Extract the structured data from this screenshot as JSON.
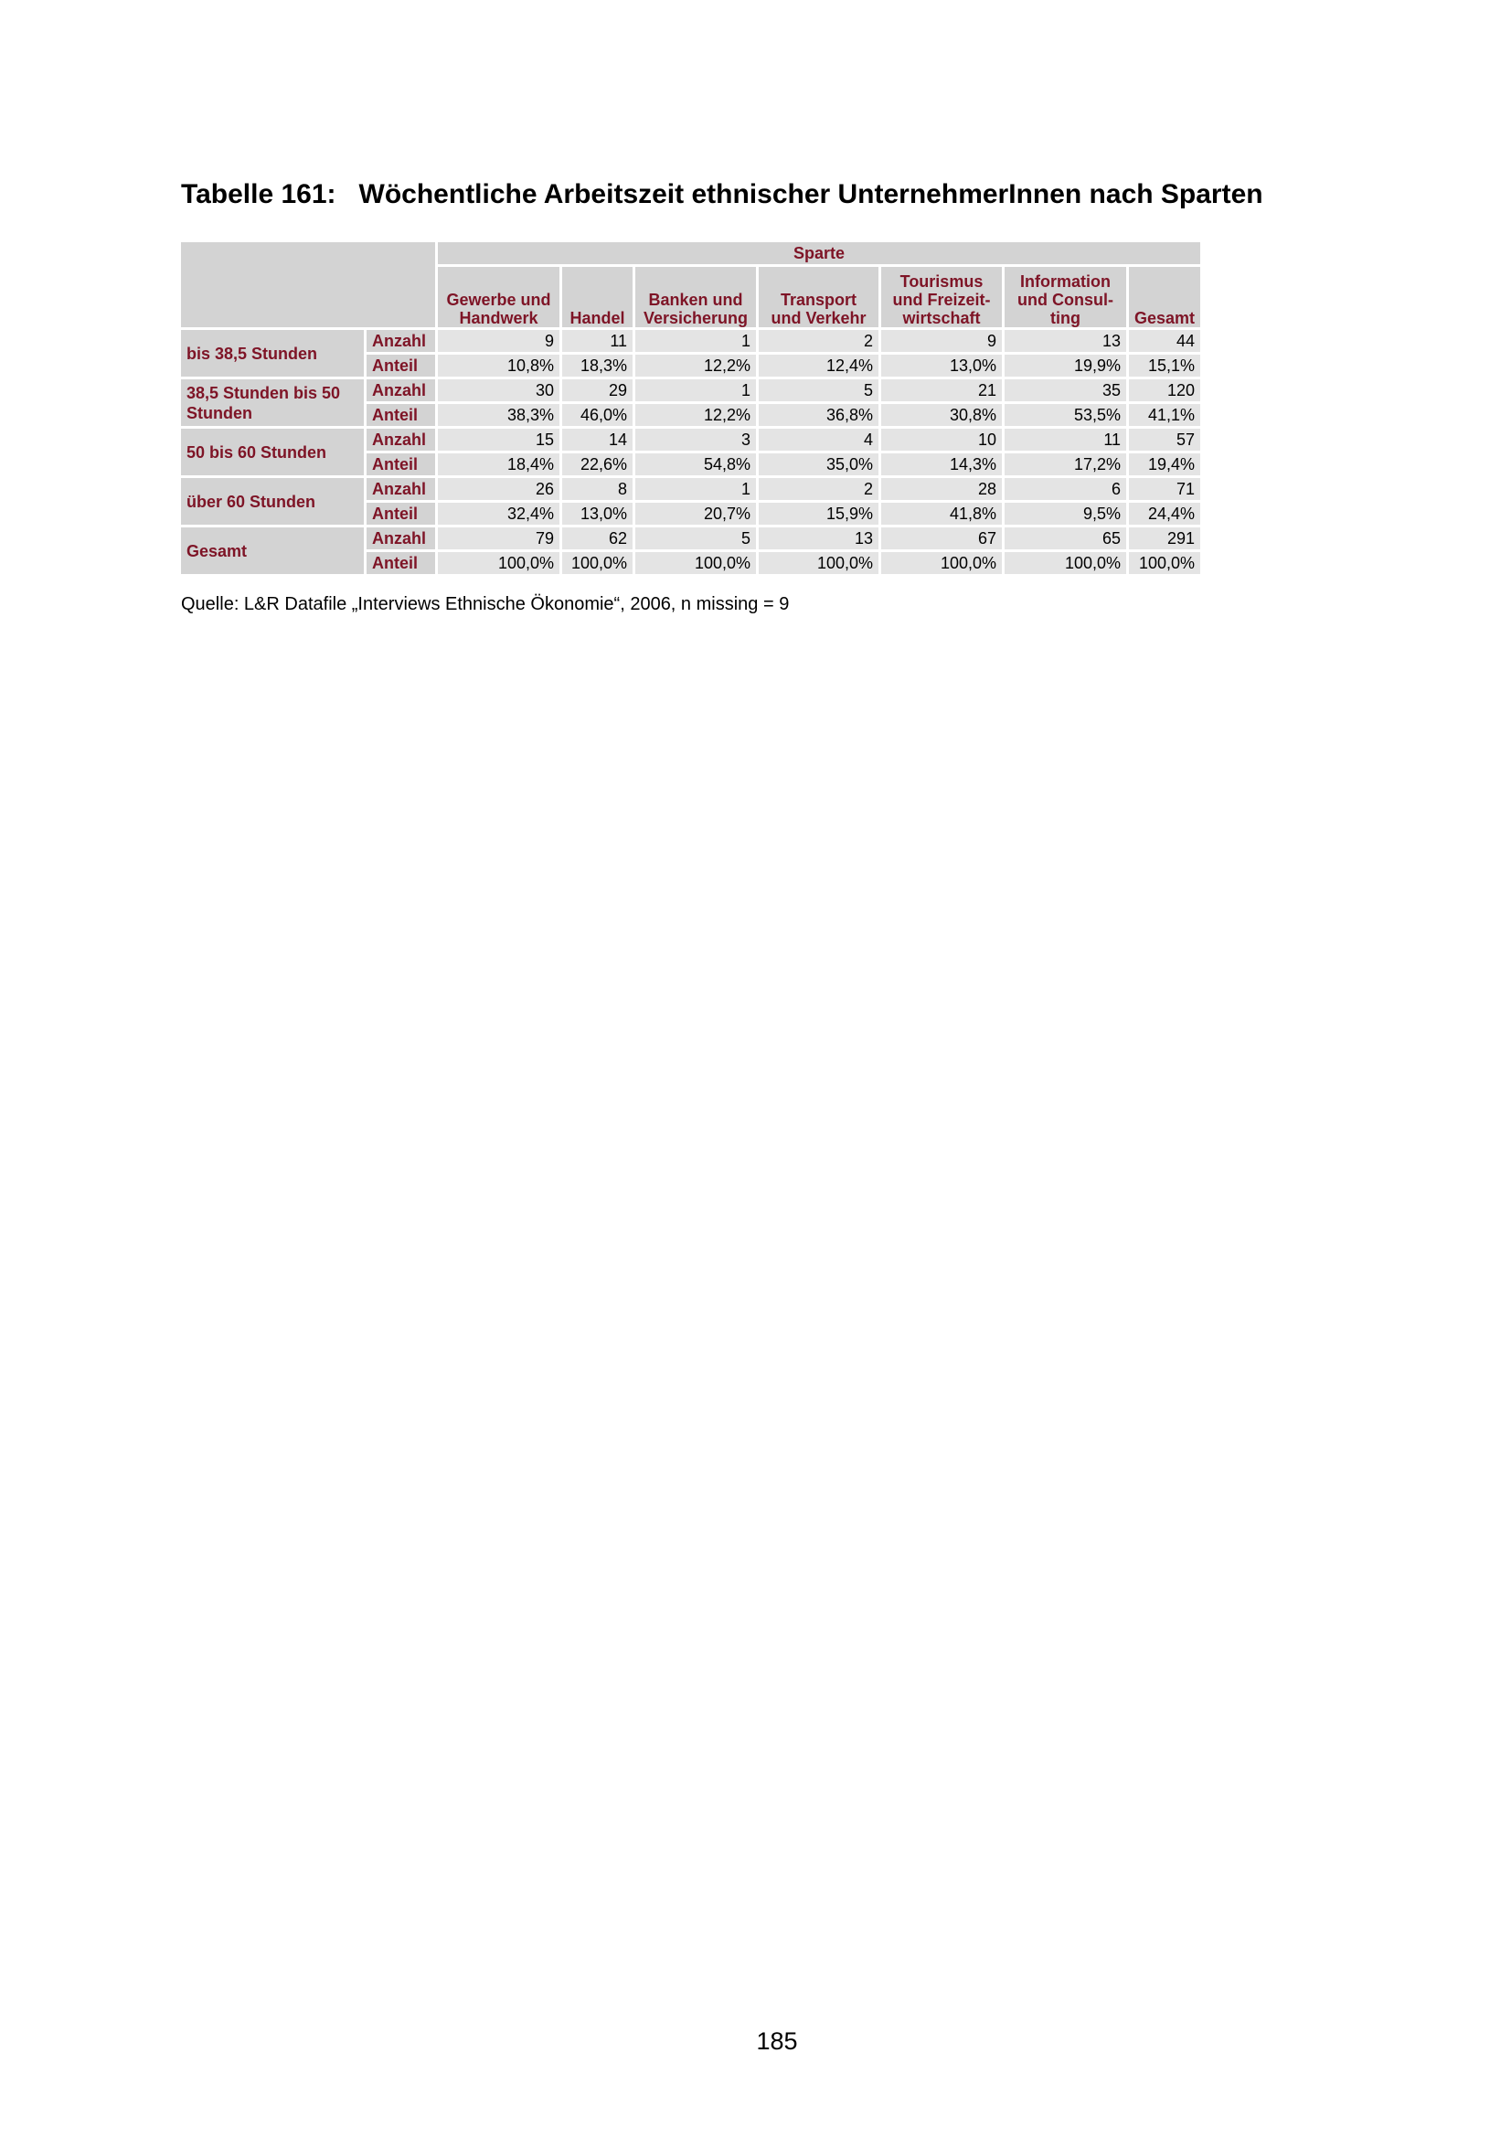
{
  "title": "Tabelle 161:   Wöchentliche Arbeitszeit ethnischer UnternehmerInnen nach Sparten",
  "table": {
    "group_header": "Sparte",
    "columns": [
      "Gewerbe und Handwerk",
      "Handel",
      "Banken und Versicherung",
      "Transport und Verkehr",
      "Tourismus und Freizeit-wirtschaft",
      "Information und Consul-ting",
      "Gesamt"
    ],
    "groups": [
      {
        "label": "bis 38,5 Stunden",
        "rows": [
          {
            "kind": "Anzahl",
            "values": [
              "9",
              "11",
              "1",
              "2",
              "9",
              "13",
              "44"
            ]
          },
          {
            "kind": "Anteil",
            "values": [
              "10,8%",
              "18,3%",
              "12,2%",
              "12,4%",
              "13,0%",
              "19,9%",
              "15,1%"
            ]
          }
        ]
      },
      {
        "label": "38,5 Stunden bis 50 Stunden",
        "rows": [
          {
            "kind": "Anzahl",
            "values": [
              "30",
              "29",
              "1",
              "5",
              "21",
              "35",
              "120"
            ]
          },
          {
            "kind": "Anteil",
            "values": [
              "38,3%",
              "46,0%",
              "12,2%",
              "36,8%",
              "30,8%",
              "53,5%",
              "41,1%"
            ]
          }
        ]
      },
      {
        "label": "50 bis 60 Stunden",
        "rows": [
          {
            "kind": "Anzahl",
            "values": [
              "15",
              "14",
              "3",
              "4",
              "10",
              "11",
              "57"
            ]
          },
          {
            "kind": "Anteil",
            "values": [
              "18,4%",
              "22,6%",
              "54,8%",
              "35,0%",
              "14,3%",
              "17,2%",
              "19,4%"
            ]
          }
        ]
      },
      {
        "label": "über 60 Stunden",
        "rows": [
          {
            "kind": "Anzahl",
            "values": [
              "26",
              "8",
              "1",
              "2",
              "28",
              "6",
              "71"
            ]
          },
          {
            "kind": "Anteil",
            "values": [
              "32,4%",
              "13,0%",
              "20,7%",
              "15,9%",
              "41,8%",
              "9,5%",
              "24,4%"
            ]
          }
        ]
      },
      {
        "label": "Gesamt",
        "rows": [
          {
            "kind": "Anzahl",
            "values": [
              "79",
              "62",
              "5",
              "13",
              "67",
              "65",
              "291"
            ]
          },
          {
            "kind": "Anteil",
            "values": [
              "100,0%",
              "100,0%",
              "100,0%",
              "100,0%",
              "100,0%",
              "100,0%",
              "100,0%"
            ]
          }
        ]
      }
    ]
  },
  "source": "Quelle: L&R Datafile „Interviews Ethnische Ökonomie“, 2006, n missing = 9",
  "page_number": "185",
  "colors": {
    "header_text": "#7e1426",
    "header_bg": "#d3d3d3",
    "cell_bg": "#e4e4e4"
  }
}
